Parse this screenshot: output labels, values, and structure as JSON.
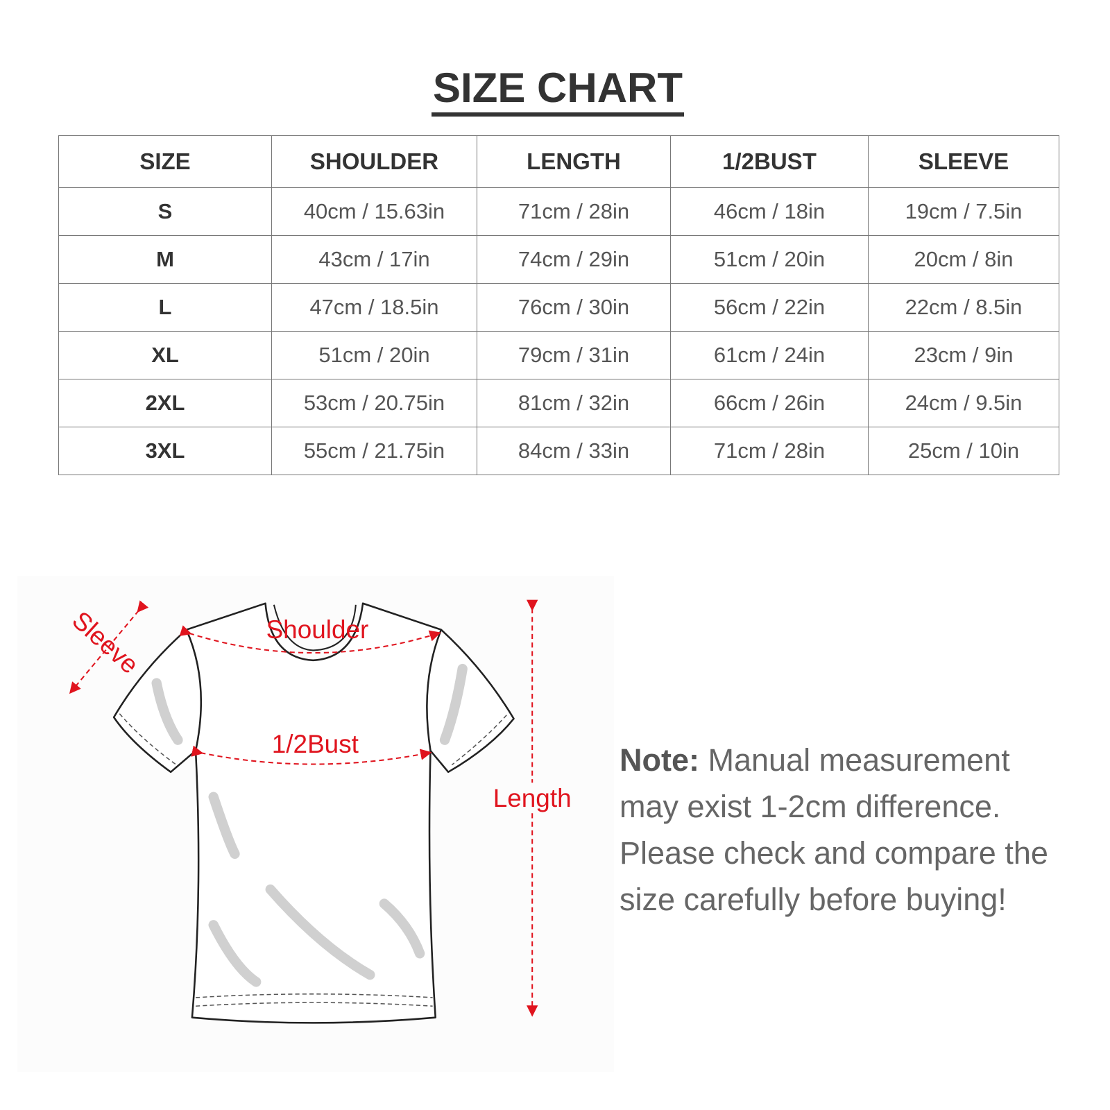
{
  "title": "SIZE CHART",
  "table": {
    "headers": [
      "SIZE",
      "SHOULDER",
      "LENGTH",
      "1/2BUST",
      "SLEEVE"
    ],
    "rows": [
      [
        "S",
        "40cm / 15.63in",
        "71cm / 28in",
        "46cm / 18in",
        "19cm / 7.5in"
      ],
      [
        "M",
        "43cm / 17in",
        "74cm / 29in",
        "51cm / 20in",
        "20cm / 8in"
      ],
      [
        "L",
        "47cm / 18.5in",
        "76cm / 30in",
        "56cm / 22in",
        "22cm / 8.5in"
      ],
      [
        "XL",
        "51cm / 20in",
        "79cm / 31in",
        "61cm / 24in",
        "23cm / 9in"
      ],
      [
        "2XL",
        "53cm / 20.75in",
        "81cm / 32in",
        "66cm / 26in",
        "24cm / 9.5in"
      ],
      [
        "3XL",
        "55cm / 21.75in",
        "84cm / 33in",
        "71cm / 28in",
        "25cm / 10in"
      ]
    ]
  },
  "diagram": {
    "labels": {
      "sleeve": "Sleeve",
      "shoulder": "Shoulder",
      "bust": "1/2Bust",
      "length": "Length"
    },
    "measure_color": "#e0141e"
  },
  "note": {
    "label": "Note:",
    "text": "Manual measurement may exist 1-2cm difference. Please check and compare the size carefully before buying!"
  }
}
